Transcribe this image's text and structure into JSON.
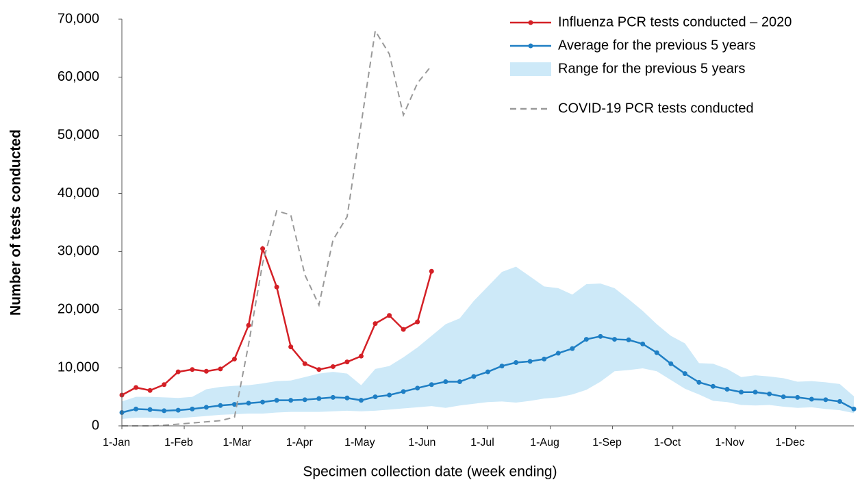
{
  "chart_data": {
    "type": "line",
    "xlabel": "Specimen collection date (week ending)",
    "ylabel": "Number of tests conducted",
    "xlim": [
      0,
      364
    ],
    "xticks": [
      {
        "value": 0,
        "label": "1-Jan"
      },
      {
        "value": 31,
        "label": "1-Feb"
      },
      {
        "value": 60,
        "label": "1-Mar"
      },
      {
        "value": 91,
        "label": "1-Apr"
      },
      {
        "value": 121,
        "label": "1-May"
      },
      {
        "value": 152,
        "label": "1-Jun"
      },
      {
        "value": 182,
        "label": "1-Jul"
      },
      {
        "value": 213,
        "label": "1-Aug"
      },
      {
        "value": 244,
        "label": "1-Sep"
      },
      {
        "value": 274,
        "label": "1-Oct"
      },
      {
        "value": 305,
        "label": "1-Nov"
      },
      {
        "value": 335,
        "label": "1-Dec"
      }
    ],
    "ylim": [
      0,
      70000
    ],
    "yticks": [
      0,
      {
        "value": 10000,
        "label": "10,000"
      },
      {
        "value": 20000,
        "label": "20,000"
      },
      {
        "value": 30000,
        "label": "30,000"
      },
      {
        "value": 40000,
        "label": "40,000"
      },
      {
        "value": 50000,
        "label": "50,000"
      },
      {
        "value": 60000,
        "label": "60,000"
      },
      {
        "value": 70000,
        "label": "70,000"
      }
    ],
    "legend": "upper right",
    "series": [
      {
        "name": "Influenza PCR tests conducted – 2020",
        "kind": "line",
        "color": "#d42026",
        "markers": true,
        "x": [
          0,
          7,
          14,
          21,
          28,
          35,
          42,
          49,
          56,
          63,
          70,
          77,
          84,
          91,
          98,
          105,
          112,
          119,
          126,
          133,
          140,
          147,
          154
        ],
        "values": [
          5300,
          6600,
          6100,
          7100,
          9300,
          9700,
          9400,
          9800,
          11500,
          17300,
          30500,
          23900,
          13600,
          10700,
          9700,
          10200,
          11000,
          12000,
          17600,
          19000,
          16600,
          17900,
          26600
        ]
      },
      {
        "name": "Average for the previous 5 years",
        "kind": "line",
        "color": "#1f7fc4",
        "markers": true,
        "x": [
          0,
          7,
          14,
          21,
          28,
          35,
          42,
          49,
          56,
          63,
          70,
          77,
          84,
          91,
          98,
          105,
          112,
          119,
          126,
          133,
          140,
          147,
          154,
          161,
          168,
          175,
          182,
          189,
          196,
          203,
          210,
          217,
          224,
          231,
          238,
          245,
          252,
          259,
          266,
          273,
          280,
          287,
          294,
          301,
          308,
          315,
          322,
          329,
          336,
          343,
          350,
          357,
          364
        ],
        "values": [
          2300,
          2900,
          2800,
          2600,
          2700,
          2900,
          3200,
          3500,
          3700,
          3900,
          4100,
          4400,
          4400,
          4500,
          4700,
          4900,
          4800,
          4400,
          5000,
          5300,
          5900,
          6500,
          7100,
          7600,
          7600,
          8500,
          9300,
          10300,
          10900,
          11100,
          11500,
          12500,
          13300,
          14900,
          15400,
          14900,
          14800,
          14100,
          12600,
          10700,
          9000,
          7500,
          6800,
          6300,
          5800,
          5800,
          5500,
          5000,
          4900,
          4600,
          4500,
          4200,
          2900
        ]
      },
      {
        "name": "Range for the previous 5 years",
        "kind": "range",
        "color": "#cde9f8",
        "x": [
          0,
          7,
          14,
          21,
          28,
          35,
          42,
          49,
          56,
          63,
          70,
          77,
          84,
          91,
          98,
          105,
          112,
          119,
          126,
          133,
          140,
          147,
          154,
          161,
          168,
          175,
          182,
          189,
          196,
          203,
          210,
          217,
          224,
          231,
          238,
          245,
          252,
          259,
          266,
          273,
          280,
          287,
          294,
          301,
          308,
          315,
          322,
          329,
          336,
          343,
          350,
          357,
          364
        ],
        "upper": [
          4200,
          5000,
          5000,
          4900,
          4800,
          5000,
          6300,
          6700,
          6900,
          7000,
          7300,
          7700,
          7800,
          8400,
          9000,
          9300,
          9000,
          7000,
          9800,
          10300,
          11800,
          13500,
          15500,
          17500,
          18500,
          21500,
          24000,
          26500,
          27400,
          25700,
          24000,
          23700,
          22600,
          24400,
          24500,
          23700,
          21800,
          19800,
          17500,
          15500,
          14200,
          10800,
          10700,
          9800,
          8400,
          8700,
          8500,
          8200,
          7600,
          7700,
          7500,
          7200,
          5100
        ],
        "lower": [
          1200,
          1400,
          1400,
          1300,
          1300,
          1500,
          1700,
          1900,
          2000,
          2100,
          2100,
          2300,
          2400,
          2400,
          2400,
          2500,
          2600,
          2500,
          2600,
          2800,
          3000,
          3200,
          3400,
          3100,
          3500,
          3800,
          4100,
          4200,
          4000,
          4300,
          4700,
          4900,
          5400,
          6200,
          7600,
          9400,
          9600,
          9900,
          9400,
          7900,
          6400,
          5400,
          4300,
          4100,
          3600,
          3500,
          3600,
          3300,
          3100,
          3200,
          2900,
          2700,
          2200
        ]
      },
      {
        "name": "COVID-19 PCR tests conducted",
        "kind": "line",
        "color": "#999999",
        "dashed": true,
        "x": [
          0,
          7,
          14,
          21,
          28,
          35,
          42,
          49,
          56,
          63,
          70,
          77,
          84,
          91,
          98,
          105,
          112,
          119,
          126,
          133,
          140,
          147,
          154
        ],
        "values": [
          0,
          0,
          0,
          100,
          300,
          500,
          700,
          900,
          1500,
          14000,
          28000,
          37000,
          36300,
          26000,
          20800,
          32000,
          36000,
          52000,
          68000,
          64000,
          53500,
          59000,
          62000
        ]
      }
    ]
  }
}
